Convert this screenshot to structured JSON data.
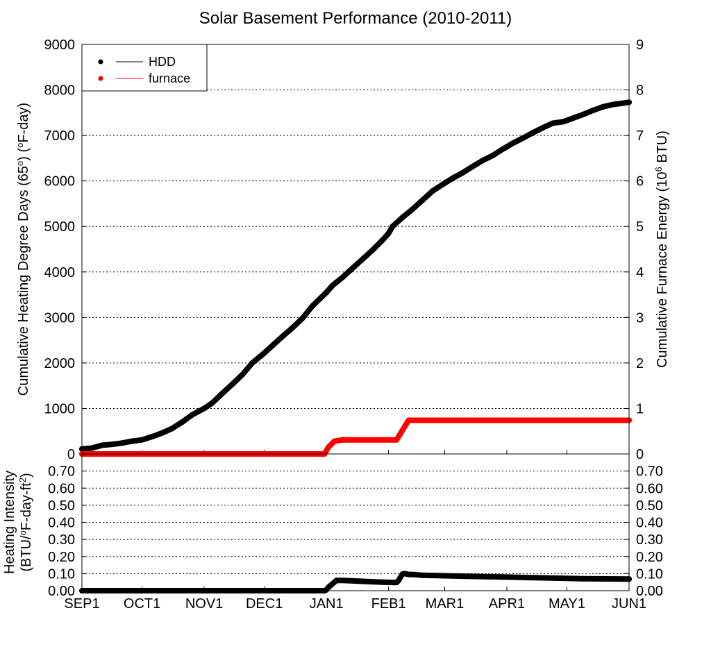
{
  "chart_data": [
    {
      "type": "line",
      "title": "Solar Basement Performance (2010-2011)",
      "xlabel": "",
      "x_ticks": [
        "SEP1",
        "OCT1",
        "NOV1",
        "DEC1",
        "JAN1",
        "FEB1",
        "MAR1",
        "APR1",
        "MAY1",
        "JUN1"
      ],
      "x_tick_days": [
        0,
        30,
        61,
        91,
        122,
        153,
        181,
        212,
        242,
        273
      ],
      "xlim": [
        0,
        273
      ],
      "ylabel_left_parts": [
        "Cumulative Heating Degree Days (65",
        "o",
        ") (",
        "o",
        "F-day)"
      ],
      "ylim_left": [
        0,
        9000
      ],
      "yticks_left": [
        "0",
        "1000",
        "2000",
        "3000",
        "4000",
        "5000",
        "6000",
        "7000",
        "8000",
        "9000"
      ],
      "ylabel_right_parts": [
        "Cumulative Furnace Energy (10",
        "6",
        " BTU)"
      ],
      "ylim_right": [
        0,
        9
      ],
      "yticks_right": [
        "0",
        "1",
        "2",
        "3",
        "4",
        "5",
        "6",
        "7",
        "8",
        "9"
      ],
      "grid": true,
      "legend": {
        "placement": "top-left",
        "entries": [
          "HDD",
          "furnace"
        ]
      },
      "series": [
        {
          "name": "HDD",
          "axis": "left",
          "color": "#000000",
          "x": [
            0,
            5,
            10,
            15,
            20,
            25,
            30,
            35,
            40,
            45,
            50,
            55,
            61,
            65,
            70,
            75,
            80,
            85,
            91,
            95,
            100,
            105,
            110,
            115,
            122,
            125,
            130,
            135,
            140,
            145,
            150,
            153,
            155,
            160,
            165,
            170,
            175,
            181,
            185,
            190,
            195,
            200,
            205,
            210,
            212,
            215,
            220,
            225,
            230,
            235,
            240,
            242,
            245,
            250,
            255,
            260,
            265,
            270,
            273
          ],
          "y": [
            110,
            130,
            190,
            210,
            240,
            280,
            310,
            380,
            460,
            560,
            700,
            860,
            1000,
            1120,
            1330,
            1530,
            1740,
            2000,
            2220,
            2380,
            2580,
            2770,
            2980,
            3250,
            3550,
            3700,
            3880,
            4080,
            4280,
            4480,
            4700,
            4850,
            5000,
            5200,
            5380,
            5580,
            5780,
            5950,
            6060,
            6180,
            6320,
            6450,
            6560,
            6700,
            6750,
            6830,
            6940,
            7060,
            7170,
            7270,
            7300,
            7330,
            7380,
            7460,
            7550,
            7630,
            7680,
            7710,
            7730
          ]
        },
        {
          "name": "furnace",
          "axis": "right",
          "color": "#ff0000",
          "x": [
            0,
            60,
            121,
            123,
            126,
            130,
            140,
            150,
            157,
            159,
            161,
            163,
            170,
            200,
            230,
            273
          ],
          "y": [
            0,
            0,
            0,
            0.15,
            0.28,
            0.31,
            0.31,
            0.31,
            0.31,
            0.45,
            0.6,
            0.74,
            0.74,
            0.74,
            0.74,
            0.74
          ]
        }
      ]
    },
    {
      "type": "line",
      "title": "",
      "xlabel": "",
      "x_ticks": [
        "SEP1",
        "OCT1",
        "NOV1",
        "DEC1",
        "JAN1",
        "FEB1",
        "MAR1",
        "APR1",
        "MAY1",
        "JUN1"
      ],
      "x_tick_days": [
        0,
        30,
        61,
        91,
        122,
        153,
        181,
        212,
        242,
        273
      ],
      "xlim": [
        0,
        273
      ],
      "ylabel_lines": [
        [
          "Heating Intensity"
        ],
        [
          "(BTU/",
          "o",
          "F-day-ft",
          "2",
          ")"
        ]
      ],
      "ylim": [
        0,
        0.8
      ],
      "yticks": [
        "0.00",
        "0.10",
        "0.20",
        "0.30",
        "0.40",
        "0.50",
        "0.60",
        "0.70"
      ],
      "grid": true,
      "series": [
        {
          "name": "intensity",
          "color": "#000000",
          "x": [
            0,
            120,
            121,
            122,
            123,
            124,
            125,
            126,
            127,
            130,
            140,
            150,
            156,
            157,
            158,
            159,
            160,
            161,
            162,
            163,
            165,
            170,
            190,
            210,
            230,
            250,
            273
          ],
          "y": [
            0,
            0,
            0,
            0.005,
            0.02,
            0.03,
            0.04,
            0.05,
            0.06,
            0.06,
            0.055,
            0.05,
            0.048,
            0.048,
            0.06,
            0.08,
            0.098,
            0.1,
            0.098,
            0.095,
            0.095,
            0.09,
            0.085,
            0.08,
            0.075,
            0.07,
            0.068
          ]
        }
      ]
    }
  ]
}
